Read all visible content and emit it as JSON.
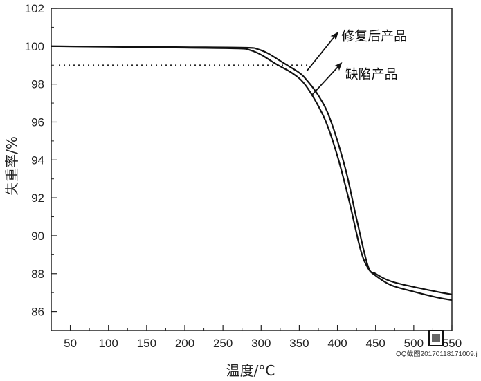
{
  "chart_data": {
    "type": "line",
    "title": "",
    "xlabel": "温度/°C",
    "ylabel": "失重率/%",
    "xlim": [
      25,
      550
    ],
    "ylim": [
      85,
      102
    ],
    "xticks": [
      50,
      100,
      150,
      200,
      250,
      300,
      350,
      400,
      450,
      500,
      550
    ],
    "yticks": [
      86,
      88,
      90,
      92,
      94,
      96,
      98,
      100,
      102
    ],
    "grid": false,
    "series": [
      {
        "name": "修复后产品",
        "x": [
          25,
          100,
          200,
          280,
          295,
          310,
          330,
          350,
          360,
          375,
          390,
          410,
          425,
          440,
          450,
          470,
          500,
          530,
          550
        ],
        "y": [
          100,
          99.98,
          99.95,
          99.92,
          99.85,
          99.6,
          99.1,
          98.6,
          98.2,
          97.4,
          96.2,
          93.6,
          90.9,
          88.4,
          88.0,
          87.6,
          87.3,
          87.05,
          86.9
        ]
      },
      {
        "name": "缺陷产品",
        "x": [
          25,
          100,
          200,
          270,
          285,
          300,
          320,
          340,
          355,
          370,
          385,
          400,
          415,
          430,
          440,
          450,
          470,
          500,
          530,
          550
        ],
        "y": [
          100,
          99.97,
          99.92,
          99.88,
          99.8,
          99.55,
          99.05,
          98.6,
          98.1,
          97.2,
          96.0,
          94.2,
          91.9,
          89.3,
          88.3,
          87.9,
          87.4,
          87.05,
          86.75,
          86.6
        ]
      }
    ],
    "reference_line": {
      "y": 99,
      "x_start": 35,
      "x_end": 362,
      "style": "dotted"
    },
    "annotations": [
      {
        "text": "修复后产品",
        "arrow_from": [
          360,
          98.7
        ],
        "arrow_to": [
          400,
          100.7
        ],
        "label_pos": [
          405,
          100.3
        ]
      },
      {
        "text": "缺陷产品",
        "arrow_from": [
          366,
          97.4
        ],
        "arrow_to": [
          405,
          99.1
        ],
        "label_pos": [
          410,
          98.3
        ]
      }
    ]
  },
  "watermark": {
    "text": "QQ截图20170118171009.j"
  }
}
